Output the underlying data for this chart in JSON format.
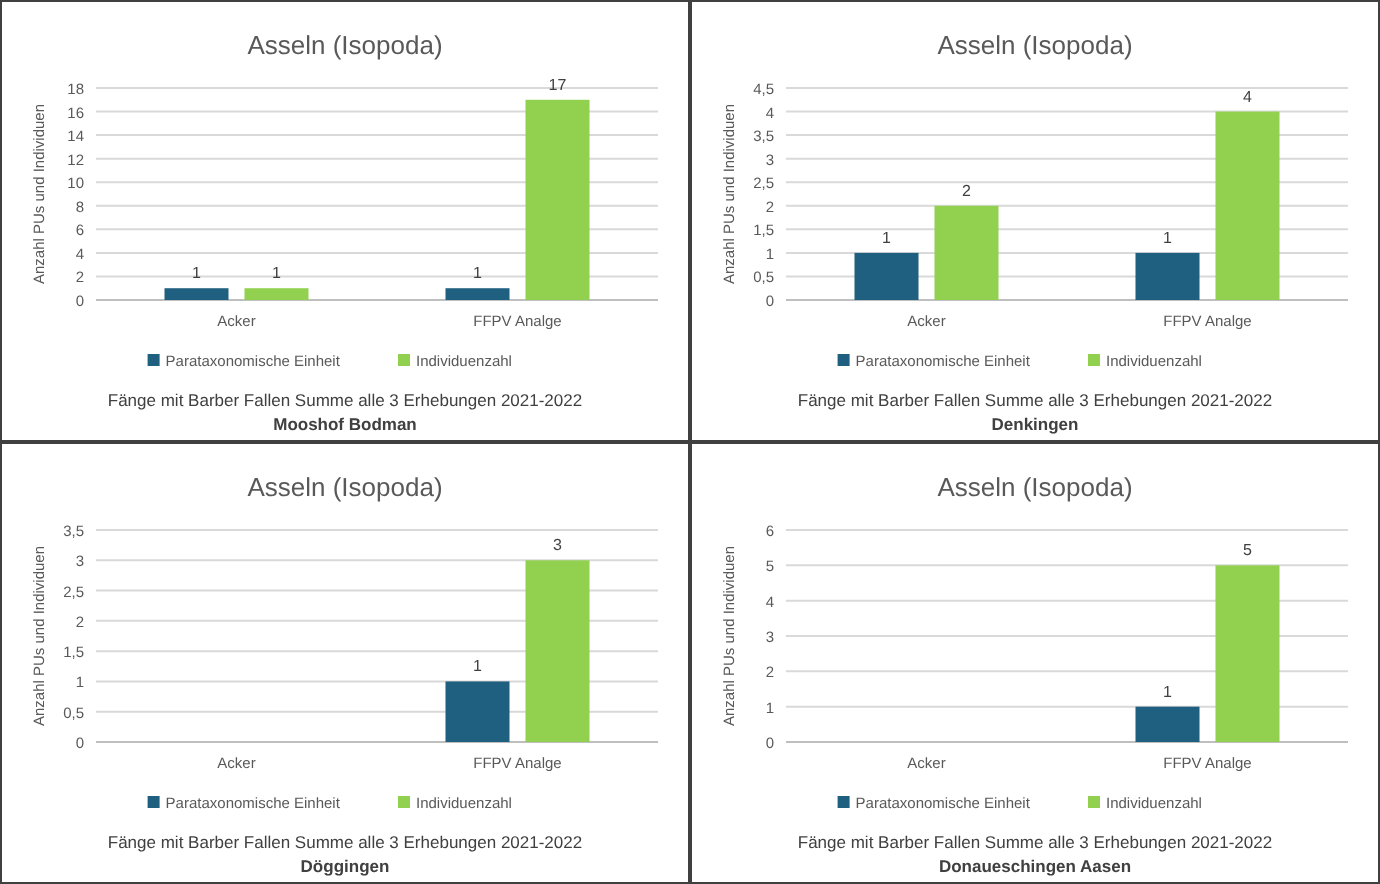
{
  "chart_data": [
    {
      "type": "bar",
      "title": "Asseln (Isopoda)",
      "ylabel": "Anzahl PUs und Individuen",
      "xlabel": "Fänge mit Barber Fallen Summe alle 3 Erhebungen 2021-2022",
      "annotations": [
        "Mooshof Bodman"
      ],
      "categories": [
        "Acker",
        "FFPV Analge"
      ],
      "series": [
        {
          "name": "Parataxonomische Einheit",
          "color": "#1f5f7f",
          "values": [
            1,
            1
          ]
        },
        {
          "name": "Individuenzahl",
          "color": "#92d050",
          "values": [
            1,
            17
          ]
        }
      ],
      "ylim": [
        0,
        18
      ],
      "yticks": [
        0,
        2,
        4,
        6,
        8,
        10,
        12,
        14,
        16,
        18
      ],
      "grid": "y",
      "legend": "bottom",
      "data_labels": true
    },
    {
      "type": "bar",
      "title": "Asseln (Isopoda)",
      "ylabel": "Anzahl PUs und Individuen",
      "xlabel": "Fänge mit Barber Fallen Summe alle 3 Erhebungen 2021-2022",
      "annotations": [
        "Denkingen"
      ],
      "categories": [
        "Acker",
        "FFPV Analge"
      ],
      "series": [
        {
          "name": "Parataxonomische Einheit",
          "color": "#1f5f7f",
          "values": [
            1,
            1
          ]
        },
        {
          "name": "Individuenzahl",
          "color": "#92d050",
          "values": [
            2,
            4
          ]
        }
      ],
      "ylim": [
        0,
        4.5
      ],
      "yticks": [
        0,
        {
          "value": 0.5,
          "label": "0,5"
        },
        1,
        {
          "value": 1.5,
          "label": "1,5"
        },
        2,
        {
          "value": 2.5,
          "label": "2,5"
        },
        3,
        {
          "value": 3.5,
          "label": "3,5"
        },
        4,
        {
          "value": 4.5,
          "label": "4,5"
        }
      ],
      "grid": "y",
      "legend": "bottom",
      "data_labels": true
    },
    {
      "type": "bar",
      "title": "Asseln (Isopoda)",
      "ylabel": "Anzahl PUs und Individuen",
      "xlabel": "Fänge mit Barber Fallen Summe alle 3 Erhebungen 2021-2022",
      "annotations": [
        "Döggingen"
      ],
      "categories": [
        "Acker",
        "FFPV Analge"
      ],
      "series": [
        {
          "name": "Parataxonomische Einheit",
          "color": "#1f5f7f",
          "values": [
            null,
            1
          ]
        },
        {
          "name": "Individuenzahl",
          "color": "#92d050",
          "values": [
            null,
            3
          ]
        }
      ],
      "ylim": [
        0,
        3.5
      ],
      "yticks": [
        0,
        {
          "value": 0.5,
          "label": "0,5"
        },
        1,
        {
          "value": 1.5,
          "label": "1,5"
        },
        2,
        {
          "value": 2.5,
          "label": "2,5"
        },
        3,
        {
          "value": 3.5,
          "label": "3,5"
        }
      ],
      "grid": "y",
      "legend": "bottom",
      "data_labels": true
    },
    {
      "type": "bar",
      "title": "Asseln (Isopoda)",
      "ylabel": "Anzahl PUs und Individuen",
      "xlabel": "Fänge mit Barber Fallen Summe alle 3 Erhebungen 2021-2022",
      "annotations": [
        "Donaueschingen Aasen"
      ],
      "categories": [
        "Acker",
        "FFPV Analge"
      ],
      "series": [
        {
          "name": "Parataxonomische Einheit",
          "color": "#1f5f7f",
          "values": [
            null,
            1
          ]
        },
        {
          "name": "Individuenzahl",
          "color": "#92d050",
          "values": [
            null,
            5
          ]
        }
      ],
      "ylim": [
        0,
        6
      ],
      "yticks": [
        0,
        1,
        2,
        3,
        4,
        5,
        6
      ],
      "grid": "y",
      "legend": "bottom",
      "data_labels": true
    }
  ]
}
